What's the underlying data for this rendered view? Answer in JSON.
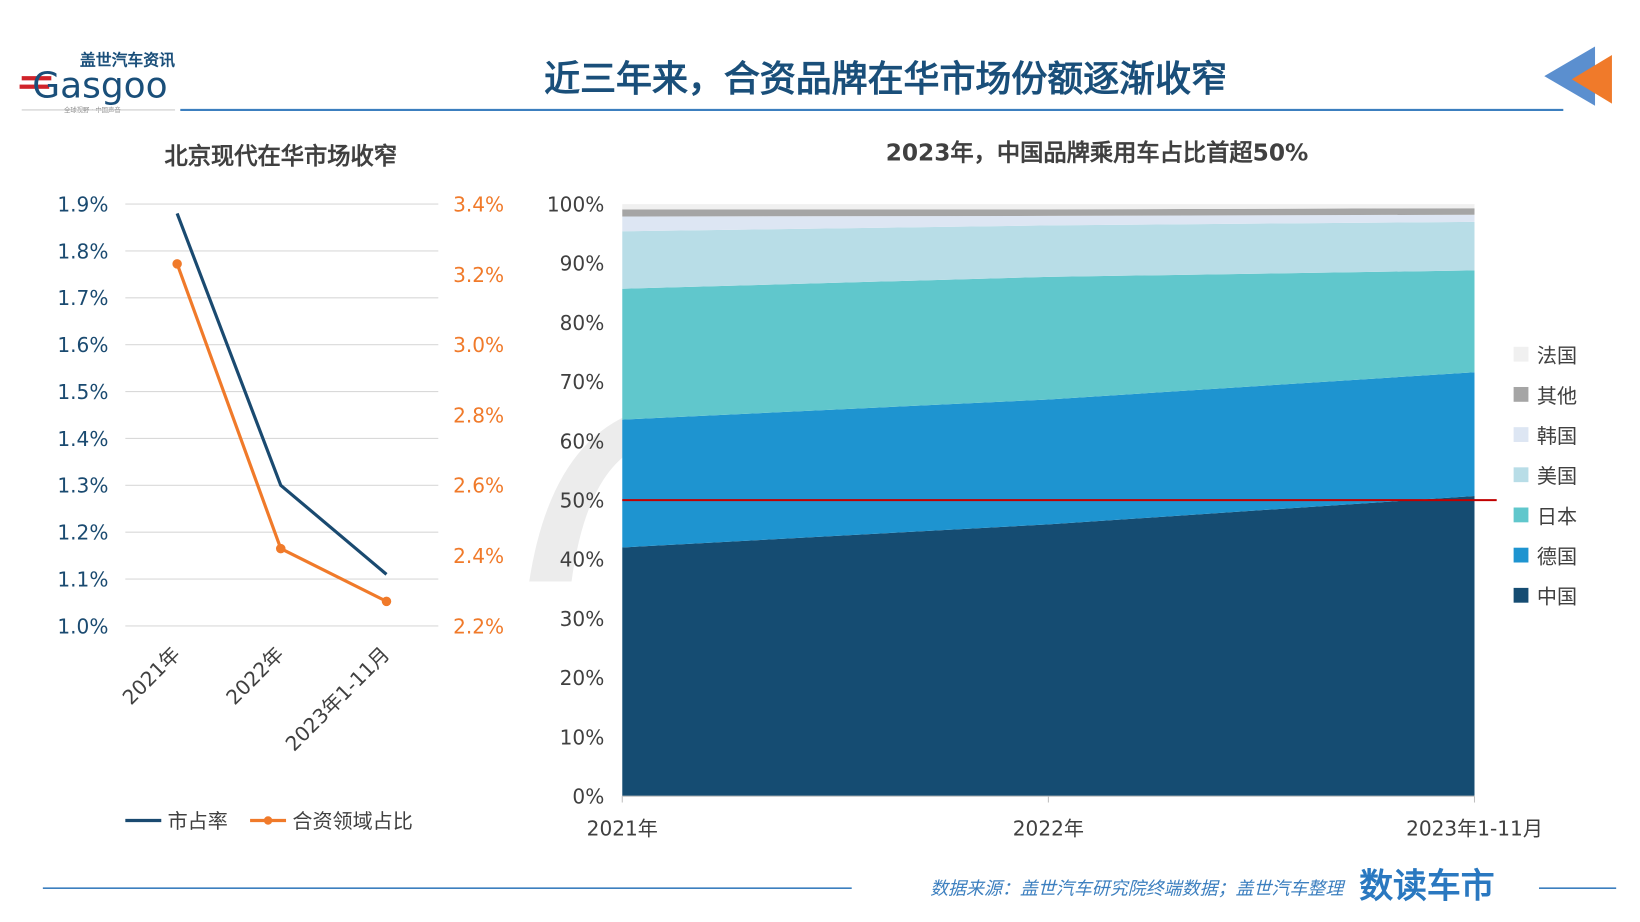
{
  "header": {
    "title": "近三年来，合资品牌在华市场份额逐渐收窄",
    "logo": {
      "cn": "盖世汽车资讯",
      "en": "Gasgoo",
      "tagline": "全球视野 · 中国声音"
    }
  },
  "footer": {
    "source": "数据来源：盖世汽车研究院终端数据；盖世汽车整理",
    "brand": "数读车市"
  },
  "colors": {
    "title": "#1a4f7a",
    "accent_orange": "#f07a2a",
    "accent_blue": "#5b8fcf",
    "threshold": "#c00000"
  },
  "chart_data": [
    {
      "type": "line",
      "title": "北京现代在华市场收窄",
      "categories": [
        "2021年",
        "2022年",
        "2023年1-11月"
      ],
      "y_left": {
        "ticks": [
          "1.0%",
          "1.1%",
          "1.2%",
          "1.3%",
          "1.4%",
          "1.5%",
          "1.6%",
          "1.7%",
          "1.8%",
          "1.9%"
        ],
        "range": [
          1.0,
          1.9
        ]
      },
      "y_right": {
        "ticks": [
          "2.2%",
          "2.4%",
          "2.6%",
          "2.8%",
          "3.0%",
          "3.2%",
          "3.4%"
        ],
        "range": [
          2.2,
          3.4
        ]
      },
      "grid": true,
      "legend_position": "bottom",
      "series": [
        {
          "name": "市占率",
          "axis": "left",
          "values": [
            1.88,
            1.3,
            1.11
          ],
          "color": "#1a4a70",
          "markers": false
        },
        {
          "name": "合资领域占比",
          "axis": "right",
          "values": [
            3.23,
            2.42,
            2.27
          ],
          "color": "#f07a2a",
          "markers": true
        }
      ]
    },
    {
      "type": "area",
      "stacked": true,
      "title": "2023年，中国品牌乘用车占比首超50%",
      "categories": [
        "2021年",
        "2022年",
        "2023年1-11月"
      ],
      "y": {
        "ticks": [
          "0%",
          "10%",
          "20%",
          "30%",
          "40%",
          "50%",
          "60%",
          "70%",
          "80%",
          "90%",
          "100%"
        ],
        "range": [
          0,
          100
        ]
      },
      "reference_line": 50,
      "legend_position": "right",
      "series": [
        {
          "name": "中国",
          "values": [
            42.0,
            45.9,
            50.7
          ],
          "color": "#154c72"
        },
        {
          "name": "德国",
          "values": [
            21.6,
            21.1,
            20.9
          ],
          "color": "#1e94d0"
        },
        {
          "name": "日本",
          "values": [
            22.1,
            20.7,
            17.2
          ],
          "color": "#60c7cc"
        },
        {
          "name": "美国",
          "values": [
            9.7,
            8.7,
            8.2
          ],
          "color": "#b8dde7"
        },
        {
          "name": "韩国",
          "values": [
            2.5,
            1.6,
            1.2
          ],
          "color": "#dde6f3"
        },
        {
          "name": "其他",
          "values": [
            1.2,
            1.1,
            1.1
          ],
          "color": "#a5a5a5"
        },
        {
          "name": "法国",
          "values": [
            0.9,
            0.9,
            0.7
          ],
          "color": "#f0f0f0"
        }
      ]
    }
  ]
}
